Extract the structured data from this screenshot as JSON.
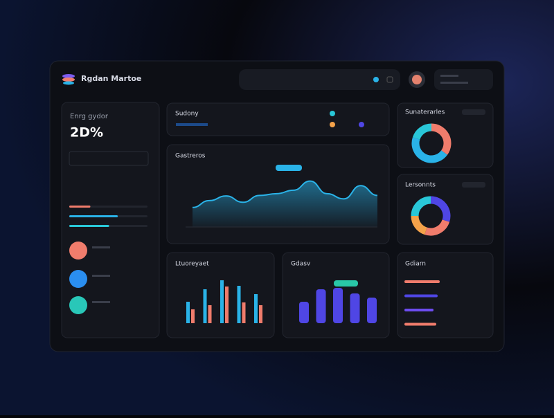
{
  "header": {
    "brand": "Rgdan Martoe"
  },
  "stat_card": {
    "title": "Enrg gydor",
    "value": "2D%",
    "progress": {
      "values": [
        27,
        62,
        51
      ],
      "colors": [
        "#f07c6c",
        "#2ab3e8",
        "#29c7d8"
      ],
      "xlim": [
        0,
        100
      ]
    }
  },
  "summary": {
    "title": "Sudony"
  },
  "area_chart": {
    "type": "area",
    "title": "Gastreros",
    "values": [
      34,
      46,
      54,
      43,
      55,
      58,
      64,
      80,
      58,
      49,
      72,
      55
    ],
    "ylim": [
      0,
      100
    ],
    "color": "#2ab3e8"
  },
  "bar_chart": {
    "type": "bar",
    "title": "Ltuoreyaet",
    "ylim": [
      0,
      70
    ],
    "series": [
      {
        "color": "#2ab3e8",
        "values": [
          31,
          49,
          62,
          54,
          42
        ]
      },
      {
        "color": "#f07c6c",
        "values": [
          20,
          26,
          53,
          30,
          26
        ]
      }
    ]
  },
  "bar_chart_2": {
    "type": "bar",
    "title": "Gdasv",
    "ylim": [
      0,
      70
    ],
    "color": "#4f46e5",
    "values": [
      31,
      49,
      51,
      43,
      37
    ]
  },
  "donut_1": {
    "type": "pie",
    "title": "Sunaterarles",
    "values": [
      35,
      45,
      20
    ],
    "colors": [
      "#f07c6c",
      "#2ab3e8",
      "#29c7d8"
    ]
  },
  "donut_2": {
    "type": "pie",
    "title": "Lersonnts",
    "values": [
      30,
      25,
      20,
      25
    ],
    "colors": [
      "#4f46e5",
      "#f07c6c",
      "#f4a24a",
      "#29c7d8"
    ]
  },
  "hbars": {
    "type": "bar",
    "title": "Gdiarn",
    "xlim": [
      0,
      60
    ],
    "values": [
      51,
      48,
      42,
      46
    ],
    "colors": [
      "#f07c6c",
      "#4f46e5",
      "#6d4cf0",
      "#f07c6c"
    ]
  }
}
